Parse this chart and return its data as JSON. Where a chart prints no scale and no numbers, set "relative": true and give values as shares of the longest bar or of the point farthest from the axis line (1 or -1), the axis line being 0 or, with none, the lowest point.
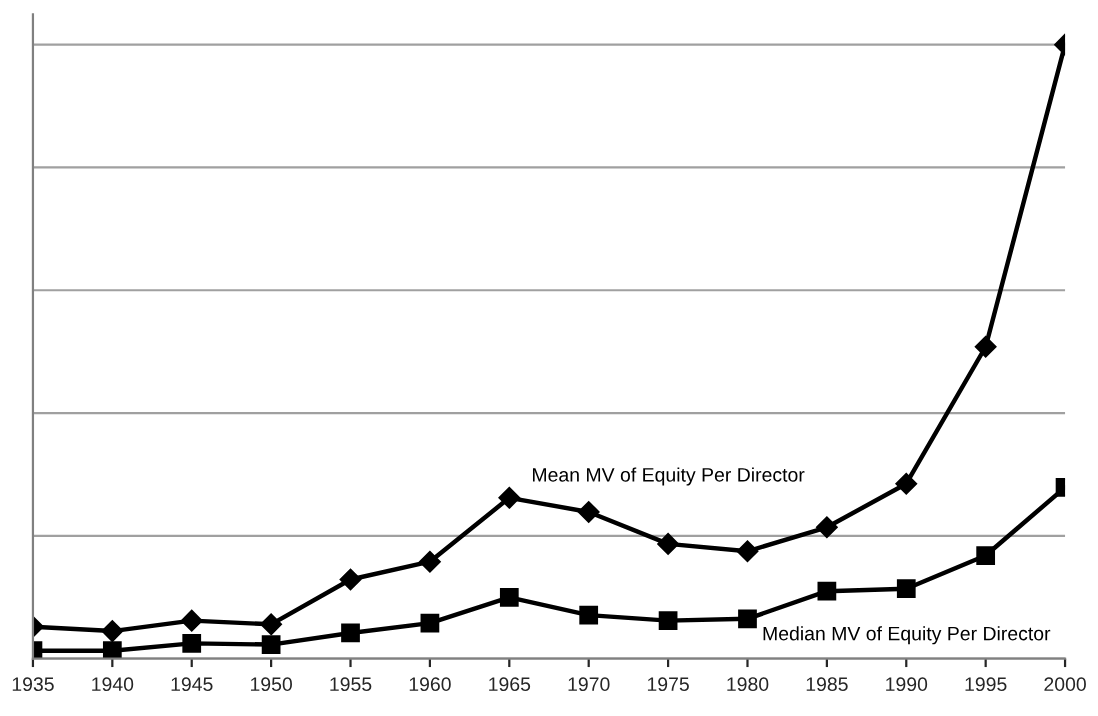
{
  "chart_data": {
    "type": "line",
    "relative": true,
    "grid": "y",
    "legend": false,
    "categories": [
      "1935",
      "1940",
      "1945",
      "1950",
      "1955",
      "1960",
      "1965",
      "1970",
      "1975",
      "1980",
      "1985",
      "1990",
      "1995",
      "2000"
    ],
    "series": [
      {
        "name": "Mean MV of Equity Per Director",
        "color": "#000000",
        "marker": "diamond",
        "values": [
          0.052,
          0.045,
          0.062,
          0.056,
          0.129,
          0.158,
          0.262,
          0.239,
          0.187,
          0.175,
          0.214,
          0.285,
          0.508,
          1
        ]
      },
      {
        "name": "Median MV of Equity Per Director",
        "color": "#000000",
        "marker": "square",
        "values": [
          0.013,
          0.013,
          0.025,
          0.023,
          0.042,
          0.058,
          0.1,
          0.071,
          0.062,
          0.065,
          0.11,
          0.114,
          0.168,
          0.279
        ]
      }
    ]
  }
}
